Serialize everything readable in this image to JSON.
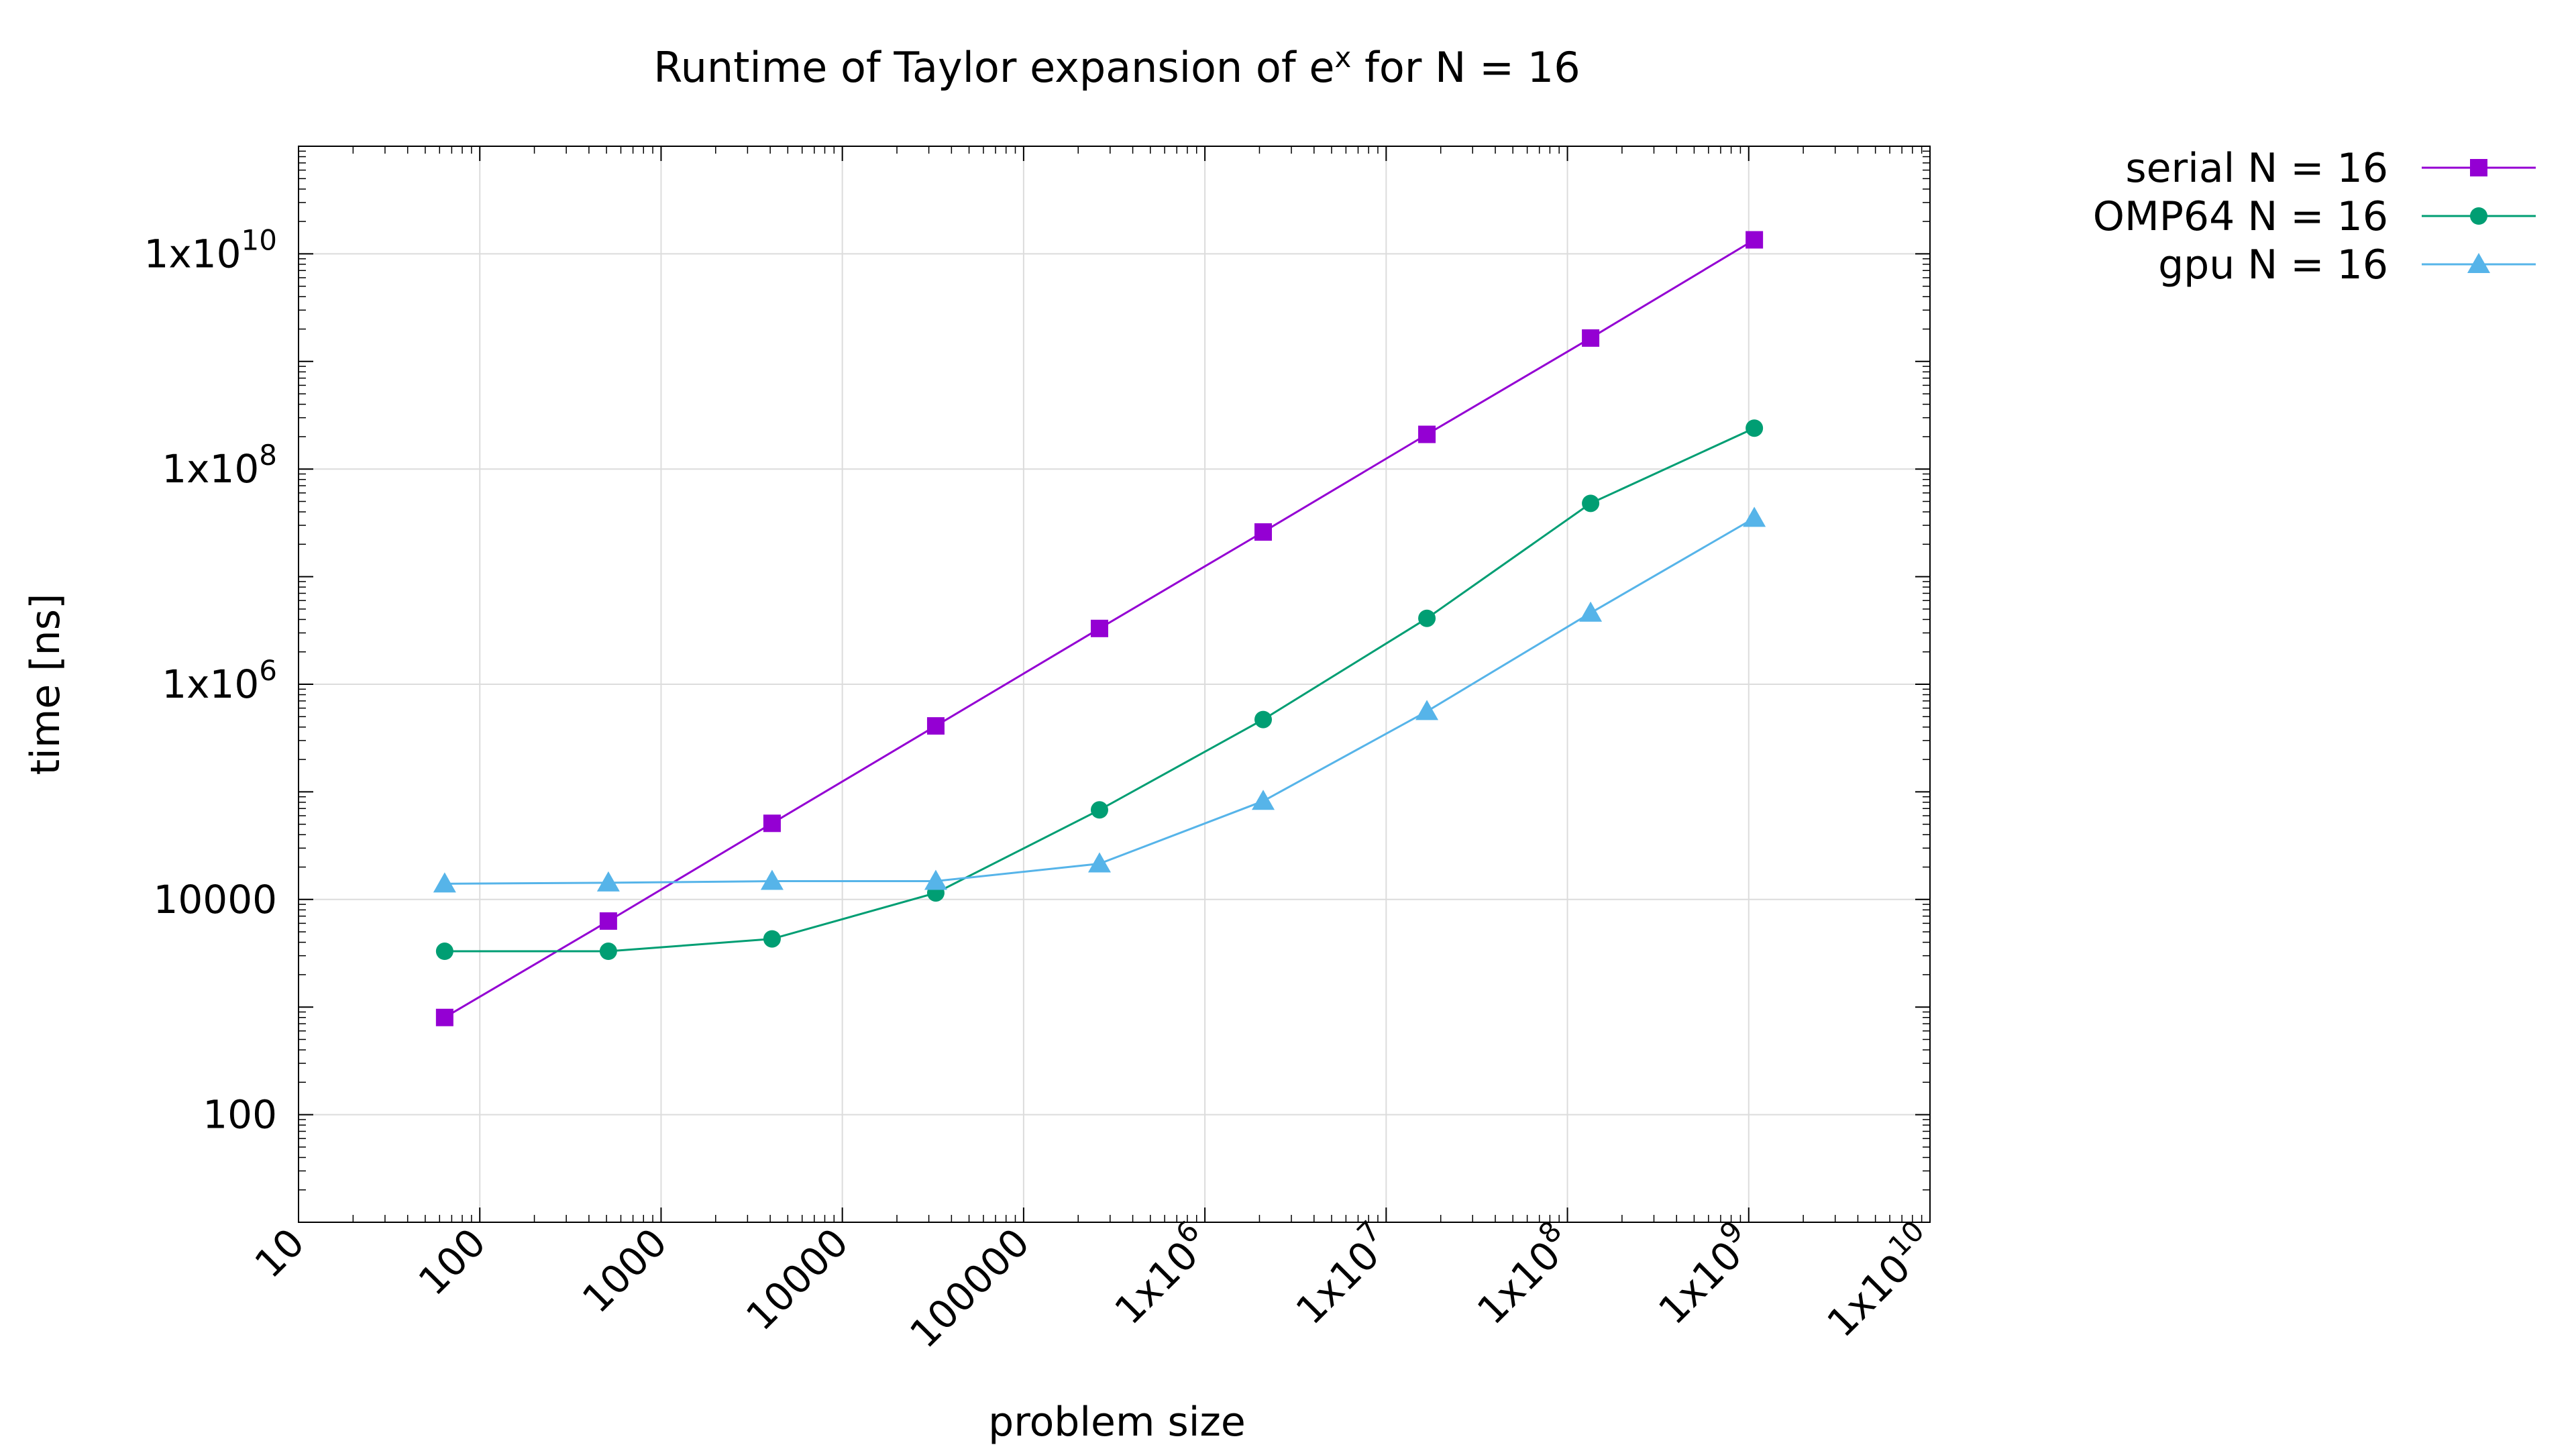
{
  "chart_data": {
    "type": "line",
    "title": "Runtime of Taylor expansion of eˣ for N = 16",
    "title_parts": {
      "pre": "Runtime of Taylor expansion of e",
      "sup": "x",
      "post": " for N = 16"
    },
    "xlabel": "problem size",
    "ylabel": "time [ns]",
    "xscale": "log",
    "yscale": "log",
    "xlim": [
      10,
      10000000000
    ],
    "ylim": [
      10,
      100000000000
    ],
    "grid": true,
    "legend_position": "top-right, outside plot",
    "x_ticks": [
      {
        "value": 10,
        "label": "10"
      },
      {
        "value": 100,
        "label": "100"
      },
      {
        "value": 1000,
        "label": "1000"
      },
      {
        "value": 10000,
        "label": "10000"
      },
      {
        "value": 100000,
        "label": "100000"
      },
      {
        "value": 1000000,
        "label": "1x10",
        "sup": "6"
      },
      {
        "value": 10000000,
        "label": "1x10",
        "sup": "7"
      },
      {
        "value": 100000000,
        "label": "1x10",
        "sup": "8"
      },
      {
        "value": 1000000000,
        "label": "1x10",
        "sup": "9"
      },
      {
        "value": 10000000000,
        "label": "1x10",
        "sup": "10"
      }
    ],
    "y_ticks": [
      {
        "value": 100,
        "label": "100"
      },
      {
        "value": 10000,
        "label": "10000"
      },
      {
        "value": 1000000,
        "label": "1x10",
        "sup": "6"
      },
      {
        "value": 100000000,
        "label": "1x10",
        "sup": "8"
      },
      {
        "value": 10000000000,
        "label": "1x10",
        "sup": "10"
      }
    ],
    "x": [
      64,
      512,
      4096,
      32768,
      262144,
      2097152,
      16777216,
      134217728,
      1073741824
    ],
    "series": [
      {
        "name": "serial N = 16",
        "color": "#9400d3",
        "marker": "square",
        "values": [
          800,
          6300,
          51000,
          410000,
          3300000,
          26000000,
          210000000,
          1650000000,
          13500000000
        ]
      },
      {
        "name": "OMP64 N = 16",
        "color": "#009e73",
        "marker": "circle",
        "values": [
          3300,
          3300,
          4300,
          11500,
          68000,
          470000,
          4100000,
          48000000,
          240000000
        ]
      },
      {
        "name": "gpu N = 16",
        "color": "#56b4e9",
        "marker": "triangle",
        "values": [
          14000,
          14300,
          14800,
          14800,
          21500,
          82000,
          560000,
          4600000,
          35000000
        ]
      }
    ]
  }
}
